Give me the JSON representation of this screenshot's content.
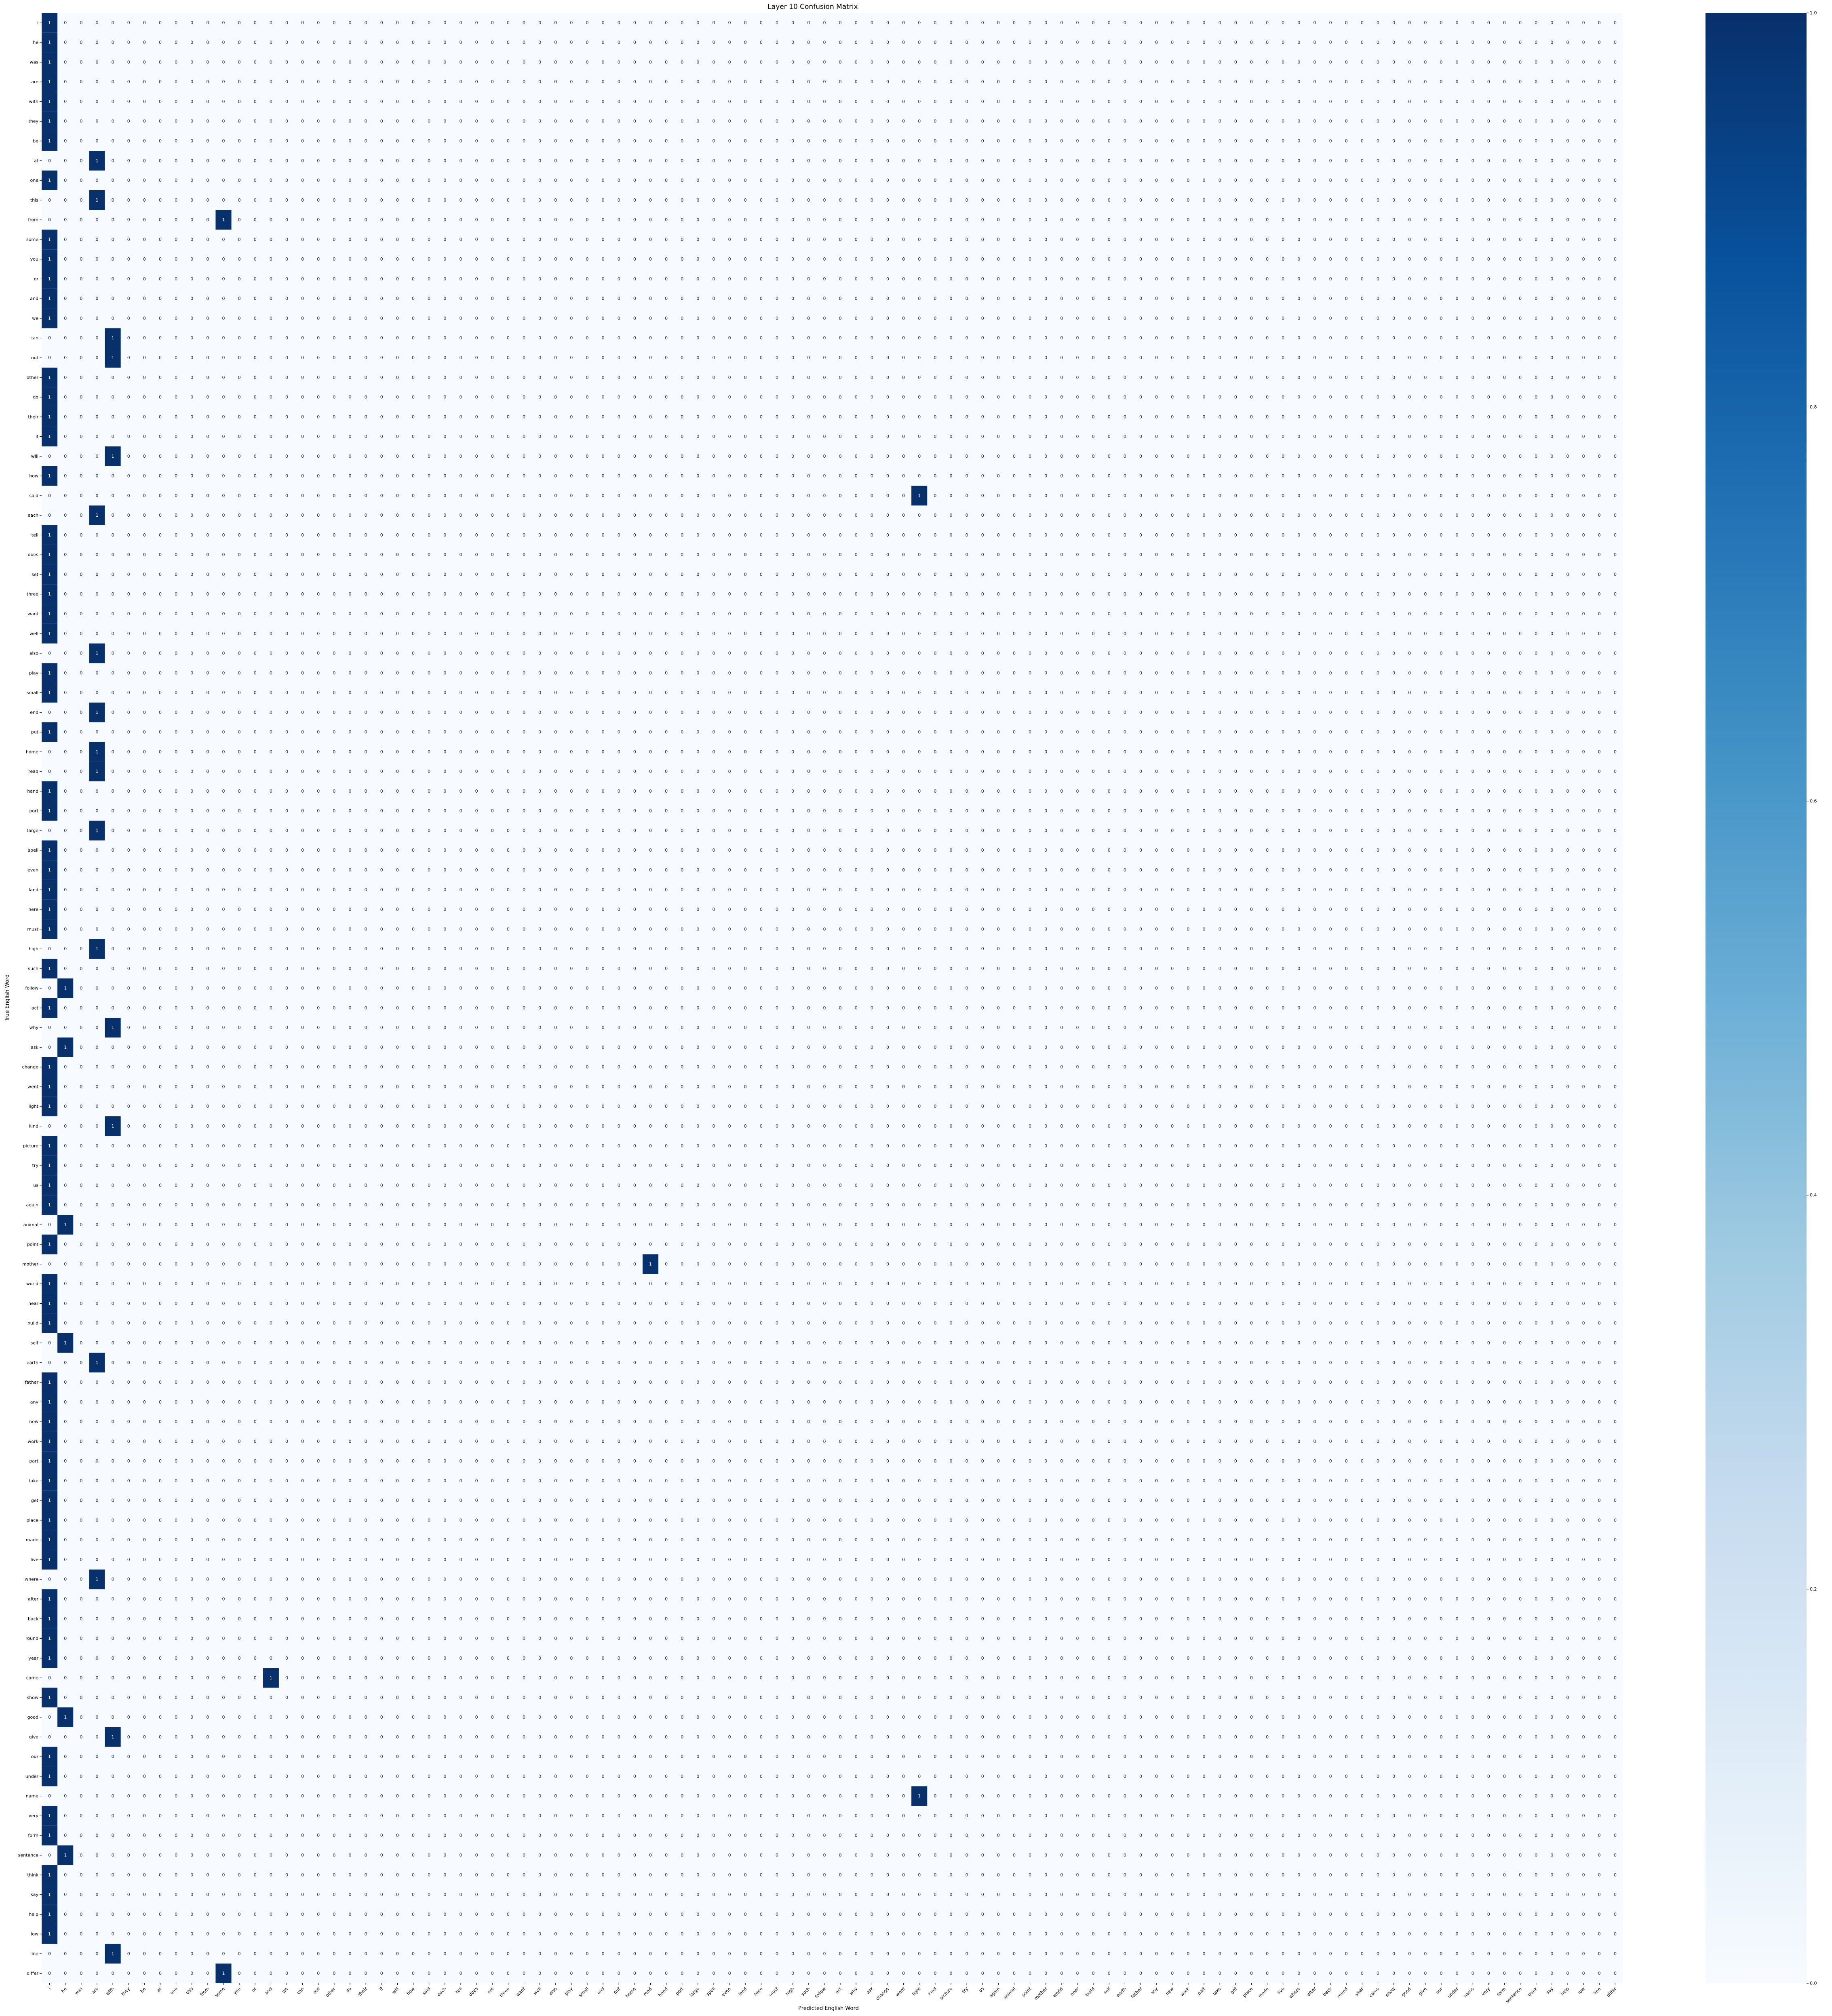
{
  "chart_data": {
    "type": "heatmap",
    "title": "Layer 10 Confusion Matrix",
    "xlabel": "Predicted English Word",
    "ylabel": "True English Word",
    "x_labels": [
      "i",
      "he",
      "was",
      "are",
      "with",
      "they",
      "be",
      "at",
      "one",
      "this",
      "from",
      "some",
      "you",
      "or",
      "and",
      "we",
      "can",
      "out",
      "other",
      "do",
      "their",
      "if",
      "will",
      "how",
      "said",
      "each",
      "tell",
      "does",
      "set",
      "three",
      "want",
      "well",
      "also",
      "play",
      "small",
      "end",
      "put",
      "home",
      "read",
      "hand",
      "port",
      "large",
      "spell",
      "even",
      "land",
      "here",
      "must",
      "high",
      "such",
      "follow",
      "act",
      "why",
      "ask",
      "change",
      "went",
      "light",
      "kind",
      "picture",
      "try",
      "us",
      "again",
      "animal",
      "point",
      "mother",
      "world",
      "near",
      "build",
      "self",
      "earth",
      "father",
      "any",
      "new",
      "work",
      "part",
      "take",
      "get",
      "place",
      "made",
      "live",
      "where",
      "after",
      "back",
      "round",
      "year",
      "came",
      "show",
      "good",
      "give",
      "our",
      "under",
      "name",
      "very",
      "form",
      "sentence",
      "think",
      "say",
      "help",
      "low",
      "line",
      "differ"
    ],
    "y_labels": [
      "i",
      "he",
      "was",
      "are",
      "with",
      "they",
      "be",
      "at",
      "one",
      "this",
      "from",
      "some",
      "you",
      "or",
      "and",
      "we",
      "can",
      "out",
      "other",
      "do",
      "their",
      "if",
      "will",
      "how",
      "said",
      "each",
      "tell",
      "does",
      "set",
      "three",
      "want",
      "well",
      "also",
      "play",
      "small",
      "end",
      "put",
      "home",
      "read",
      "hand",
      "port",
      "large",
      "spell",
      "even",
      "land",
      "here",
      "must",
      "high",
      "such",
      "follow",
      "act",
      "why",
      "ask",
      "change",
      "went",
      "light",
      "kind",
      "picture",
      "try",
      "us",
      "again",
      "animal",
      "point",
      "mother",
      "world",
      "near",
      "build",
      "self",
      "earth",
      "father",
      "any",
      "new",
      "work",
      "part",
      "take",
      "get",
      "place",
      "made",
      "live",
      "where",
      "after",
      "back",
      "round",
      "year",
      "came",
      "show",
      "good",
      "give",
      "our",
      "under",
      "name",
      "very",
      "form",
      "sentence",
      "think",
      "say",
      "help",
      "low",
      "line",
      "differ"
    ],
    "predicted_index": [
      0,
      0,
      0,
      0,
      0,
      0,
      0,
      3,
      0,
      3,
      11,
      0,
      0,
      0,
      0,
      0,
      4,
      4,
      0,
      0,
      0,
      0,
      4,
      0,
      55,
      3,
      0,
      0,
      0,
      0,
      0,
      0,
      3,
      0,
      0,
      3,
      0,
      3,
      3,
      0,
      0,
      3,
      0,
      0,
      0,
      0,
      0,
      3,
      0,
      1,
      0,
      4,
      1,
      0,
      0,
      0,
      4,
      0,
      0,
      0,
      0,
      1,
      0,
      38,
      0,
      0,
      0,
      1,
      3,
      0,
      0,
      0,
      0,
      0,
      0,
      0,
      0,
      0,
      0,
      3,
      0,
      0,
      0,
      0,
      14,
      0,
      1,
      4,
      0,
      0,
      55,
      0,
      0,
      1,
      0,
      0,
      0,
      0,
      4,
      11
    ],
    "cell_value": 1,
    "other_cells_value": 0,
    "colorbar": {
      "range": [
        0,
        1
      ],
      "ticks": [
        "0.0",
        "0.2",
        "0.4",
        "0.6",
        "0.8",
        "1.0"
      ],
      "colormap": "Blues",
      "low_color": "#f7fbff",
      "high_color": "#08306b"
    },
    "grid": false,
    "legend": "none"
  }
}
